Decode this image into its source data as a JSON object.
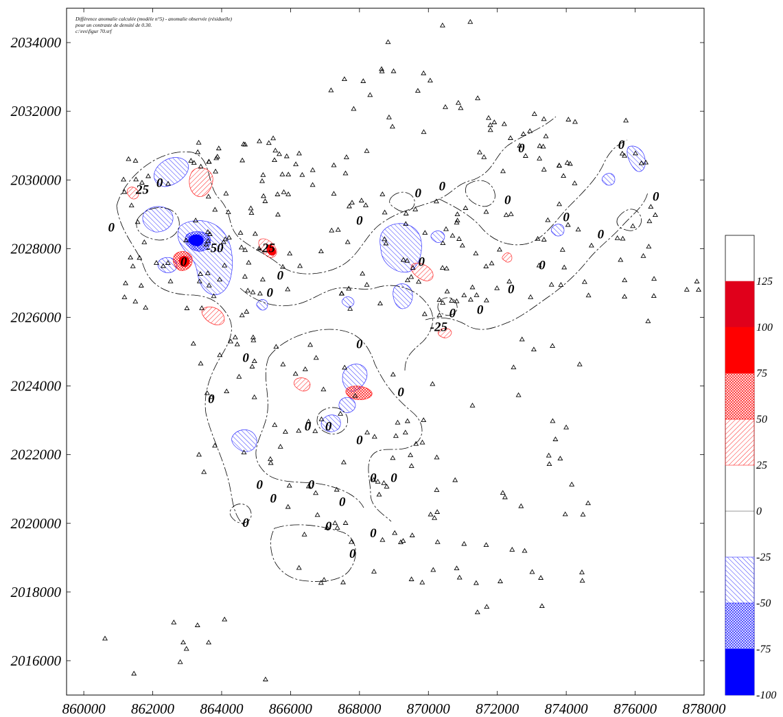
{
  "caption": {
    "line1": "Différence anomalie calculée (modèle n°5) - anomalie observée (résiduelle)",
    "line2": "pour un contraste de densité de 0.30.",
    "line3": "c:\\res\\figur 70.srf"
  },
  "map_data": {
    "type": "contour-map",
    "x_axis": {
      "min": 859500,
      "max": 878000,
      "ticks": [
        860000,
        862000,
        864000,
        866000,
        868000,
        870000,
        872000,
        874000,
        876000,
        878000
      ],
      "tick_labels": [
        "860000",
        "862000",
        "864000",
        "866000",
        "868000",
        "870000",
        "872000",
        "874000",
        "876000",
        "878000"
      ]
    },
    "y_axis": {
      "min": 2015000,
      "max": 2035000,
      "ticks": [
        2016000,
        2018000,
        2020000,
        2022000,
        2024000,
        2026000,
        2028000,
        2030000,
        2032000,
        2034000
      ],
      "tick_labels": [
        "2016000",
        "2018000",
        "2020000",
        "2022000",
        "2024000",
        "2026000",
        "2028000",
        "2030000",
        "2032000",
        "2034000"
      ]
    },
    "legend": {
      "levels": [
        "125",
        "100",
        "75",
        "50",
        "25",
        "0",
        "-25",
        "-50",
        "-75",
        "-100"
      ],
      "bands": [
        {
          "from": 125,
          "to": 150,
          "color": "#ffffff",
          "fill": "none"
        },
        {
          "from": 100,
          "to": 125,
          "color": "#e0001b",
          "fill": "solid"
        },
        {
          "from": 75,
          "to": 100,
          "color": "#ff0000",
          "fill": "solid"
        },
        {
          "from": 50,
          "to": 75,
          "color": "#ff2020",
          "fill": "cross-hatch"
        },
        {
          "from": 25,
          "to": 50,
          "color": "#ff2020",
          "fill": "hatch"
        },
        {
          "from": -25,
          "to": 25,
          "color": "#ffffff",
          "fill": "none"
        },
        {
          "from": -50,
          "to": -25,
          "color": "#3030ff",
          "fill": "hatch"
        },
        {
          "from": -75,
          "to": -50,
          "color": "#3030ff",
          "fill": "cross-hatch"
        },
        {
          "from": -100,
          "to": -75,
          "color": "#0000ff",
          "fill": "solid"
        }
      ]
    },
    "contour_labels": [
      {
        "text": "0",
        "x": 860800,
        "y": 2028500
      },
      {
        "text": "25",
        "x": 861700,
        "y": 2029600
      },
      {
        "text": "0",
        "x": 862200,
        "y": 2029800
      },
      {
        "text": "0",
        "x": 862900,
        "y": 2027500
      },
      {
        "text": "-50",
        "x": 863800,
        "y": 2027900
      },
      {
        "text": "-25",
        "x": 865300,
        "y": 2027900
      },
      {
        "text": "0",
        "x": 865700,
        "y": 2027100
      },
      {
        "text": "0",
        "x": 865400,
        "y": 2026600
      },
      {
        "text": "0",
        "x": 864700,
        "y": 2024700
      },
      {
        "text": "0",
        "x": 863700,
        "y": 2023500
      },
      {
        "text": "0",
        "x": 866500,
        "y": 2022700
      },
      {
        "text": "0",
        "x": 867100,
        "y": 2022700
      },
      {
        "text": "0",
        "x": 868000,
        "y": 2022300
      },
      {
        "text": "0",
        "x": 868000,
        "y": 2025100
      },
      {
        "text": "0",
        "x": 869200,
        "y": 2023700
      },
      {
        "text": "0",
        "x": 866600,
        "y": 2021000
      },
      {
        "text": "0",
        "x": 865100,
        "y": 2021000
      },
      {
        "text": "0",
        "x": 865500,
        "y": 2020600
      },
      {
        "text": "0",
        "x": 864700,
        "y": 2019900
      },
      {
        "text": "0",
        "x": 867500,
        "y": 2020500
      },
      {
        "text": "0",
        "x": 868400,
        "y": 2021200
      },
      {
        "text": "0",
        "x": 869000,
        "y": 2021200
      },
      {
        "text": "0",
        "x": 867100,
        "y": 2019800
      },
      {
        "text": "0",
        "x": 868400,
        "y": 2019600
      },
      {
        "text": "0",
        "x": 867800,
        "y": 2019000
      },
      {
        "text": "0",
        "x": 868000,
        "y": 2028700
      },
      {
        "text": "0",
        "x": 869700,
        "y": 2029500
      },
      {
        "text": "0",
        "x": 870400,
        "y": 2029700
      },
      {
        "text": "0",
        "x": 869800,
        "y": 2027500
      },
      {
        "text": "-25",
        "x": 870300,
        "y": 2025600
      },
      {
        "text": "0",
        "x": 870700,
        "y": 2026000
      },
      {
        "text": "0",
        "x": 871500,
        "y": 2026100
      },
      {
        "text": "0",
        "x": 872300,
        "y": 2029300
      },
      {
        "text": "0",
        "x": 872700,
        "y": 2030800
      },
      {
        "text": "0",
        "x": 874000,
        "y": 2028800
      },
      {
        "text": "0",
        "x": 875000,
        "y": 2028300
      },
      {
        "text": "0",
        "x": 873300,
        "y": 2027400
      },
      {
        "text": "0",
        "x": 872400,
        "y": 2026700
      },
      {
        "text": "0",
        "x": 875600,
        "y": 2030900
      },
      {
        "text": "0",
        "x": 876600,
        "y": 2029400
      }
    ]
  }
}
